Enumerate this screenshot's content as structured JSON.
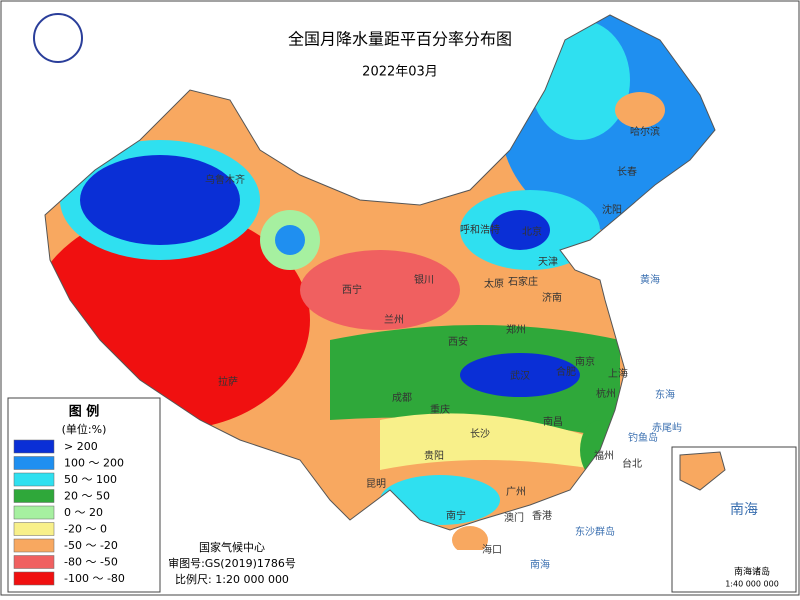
{
  "header": {
    "title": "全国月降水量距平百分率分布图",
    "date": "2022年03月"
  },
  "legend": {
    "title": "图 例",
    "unit": "(单位:%)",
    "items": [
      {
        "label": "> 200",
        "color": "#0a2fd6"
      },
      {
        "label": "100 ～ 200",
        "color": "#1f8ff0"
      },
      {
        "label": "50 ～ 100",
        "color": "#2fe0f0"
      },
      {
        "label": "20 ～ 50",
        "color": "#2fa83a"
      },
      {
        "label": "0 ～ 20",
        "color": "#a6f0a0"
      },
      {
        "label": "-20 ～ 0",
        "color": "#f8f08a"
      },
      {
        "label": "-50 ～ -20",
        "color": "#f8a860"
      },
      {
        "label": "-80 ～ -50",
        "color": "#f06060"
      },
      {
        "label": "-100 ～ -80",
        "color": "#f01010"
      }
    ]
  },
  "credits": {
    "org": "国家气候中心",
    "approval": "审图号:GS(2019)1786号",
    "scale": "比例尺: 1:20 000 000"
  },
  "cities": [
    "乌鲁木齐",
    "哈尔滨",
    "长春",
    "沈阳",
    "呼和浩特",
    "北京",
    "天津",
    "石家庄",
    "太原",
    "济南",
    "银川",
    "西宁",
    "兰州",
    "郑州",
    "西安",
    "南京",
    "合肥",
    "上海",
    "武汉",
    "杭州",
    "成都",
    "重庆",
    "长沙",
    "南昌",
    "福州",
    "台北",
    "拉萨",
    "贵阳",
    "昆明",
    "南宁",
    "广州",
    "香港",
    "澳门",
    "海口"
  ],
  "seas": [
    "黄海",
    "东海",
    "南海",
    "东沙群岛",
    "钓鱼岛",
    "赤尾屿"
  ],
  "inset": {
    "title": "南海",
    "label": "南海诸岛",
    "scale": "1:40 000 000"
  }
}
